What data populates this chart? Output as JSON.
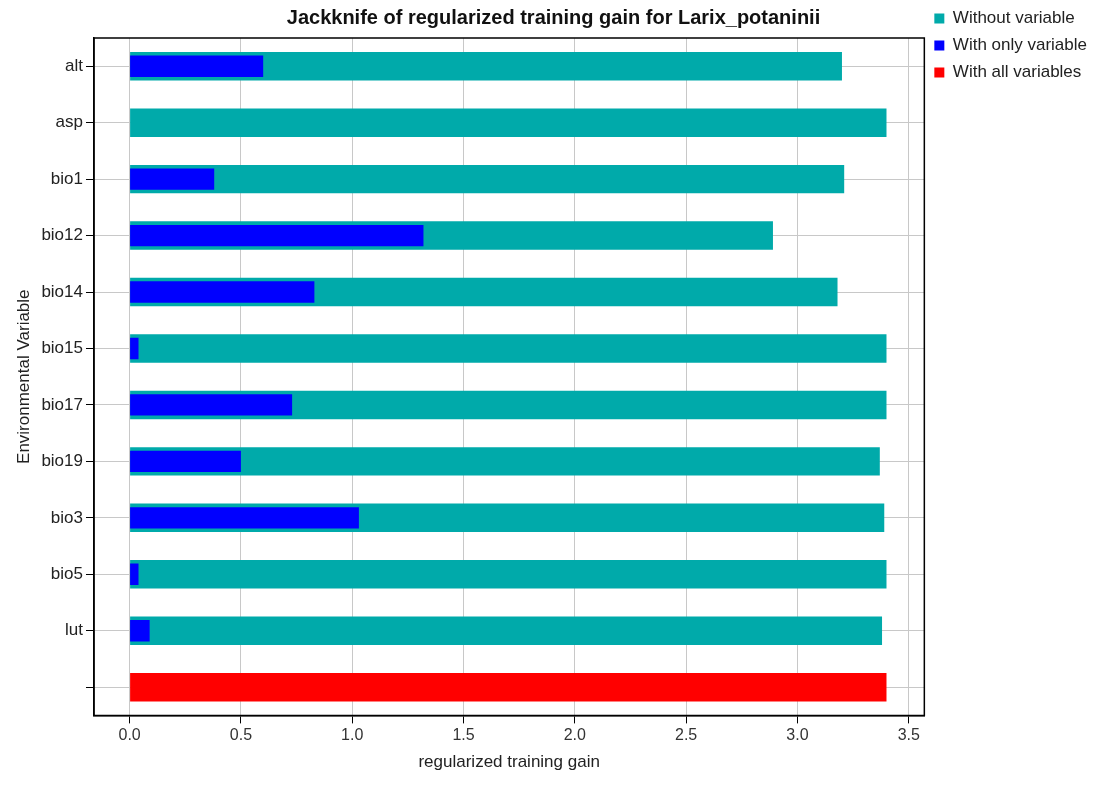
{
  "chart_data": {
    "type": "bar",
    "orientation": "horizontal",
    "title": "Jackknife of regularized training gain for Larix_potaninii",
    "xlabel": "regularized training gain",
    "ylabel": "Environmental Variable",
    "categories": [
      "alt",
      "asp",
      "bio1",
      "bio12",
      "bio14",
      "bio15",
      "bio17",
      "bio19",
      "bio3",
      "bio5",
      "lut",
      null
    ],
    "series": [
      {
        "name": "Without variable",
        "color": "#00aaaa",
        "values": [
          3.2,
          3.4,
          3.21,
          2.89,
          3.18,
          3.4,
          3.4,
          3.37,
          3.39,
          3.4,
          3.38,
          null
        ]
      },
      {
        "name": "With only variable",
        "color": "#0000ff",
        "values": [
          0.6,
          0,
          0.38,
          1.32,
          0.83,
          0.04,
          0.73,
          0.5,
          1.03,
          0.04,
          0.09,
          null
        ]
      },
      {
        "name": "With all variables",
        "color": "#ff0000",
        "values": [
          null,
          null,
          null,
          null,
          null,
          null,
          null,
          null,
          null,
          null,
          null,
          3.4
        ]
      }
    ],
    "xlim": [
      -0.16,
      3.57
    ],
    "xticks": [
      {
        "value": 0,
        "label": "0.0"
      },
      {
        "value": 0.5,
        "label": "0.5"
      },
      {
        "value": 1,
        "label": "1.0"
      },
      {
        "value": 1.5,
        "label": "1.5"
      },
      {
        "value": 2,
        "label": "2.0"
      },
      {
        "value": 2.5,
        "label": "2.5"
      },
      {
        "value": 3,
        "label": "3.0"
      },
      {
        "value": 3.5,
        "label": "3.5"
      }
    ],
    "grid": true,
    "legend": "top right"
  }
}
